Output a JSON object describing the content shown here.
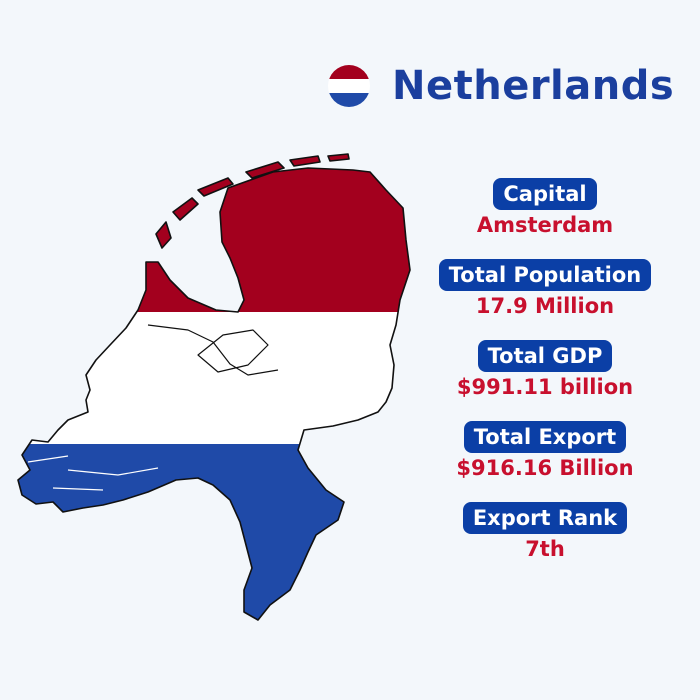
{
  "header": {
    "title": "Netherlands",
    "flag_icon": "netherlands-flag-icon"
  },
  "colors": {
    "flag_red": "#a3001e",
    "flag_white": "#ffffff",
    "flag_blue": "#1f4aa8",
    "title_blue": "#1b3f9e",
    "label_bg": "#0b3fa6",
    "value_red": "#c8102e",
    "background": "#f3f7fb"
  },
  "map": {
    "icon": "netherlands-map-flag-icon"
  },
  "stats": [
    {
      "label": "Capital",
      "value": "Amsterdam"
    },
    {
      "label": "Total Population",
      "value": "17.9 Million"
    },
    {
      "label": "Total GDP",
      "value": "$991.11 billion"
    },
    {
      "label": "Total Export",
      "value": "$916.16 Billion"
    },
    {
      "label": "Export Rank",
      "value": "7th"
    }
  ]
}
